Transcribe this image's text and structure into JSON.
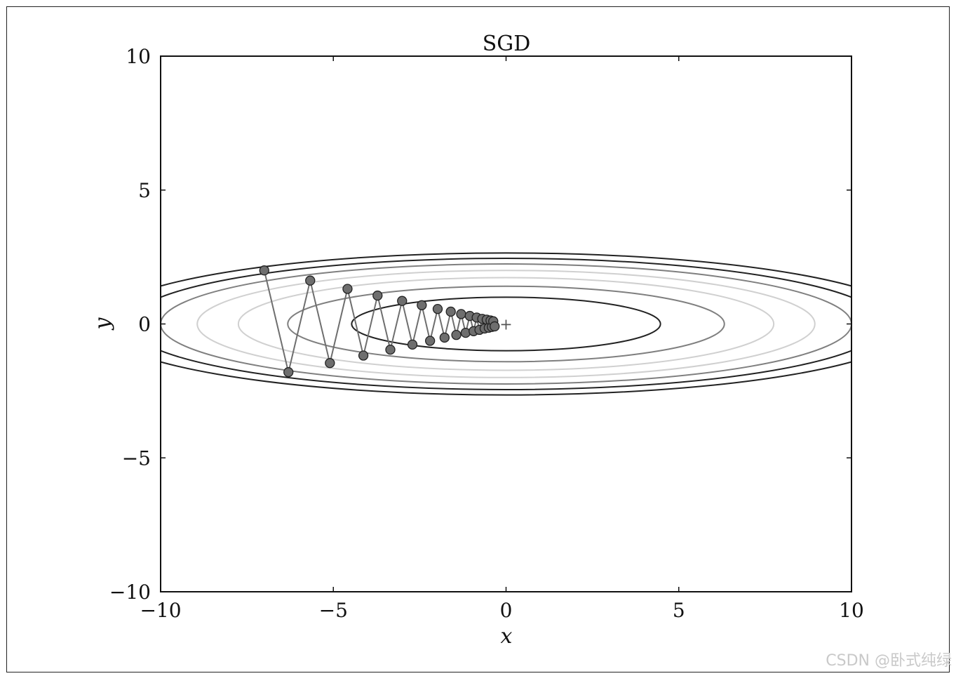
{
  "chart_data": {
    "type": "line",
    "title": "SGD",
    "xlabel": "x",
    "ylabel": "y",
    "xlim": [
      -10,
      10
    ],
    "ylim": [
      -10,
      10
    ],
    "xticks": [
      -10,
      -5,
      0,
      5,
      10
    ],
    "yticks": [
      -10,
      -5,
      0,
      5,
      10
    ],
    "xtick_labels": [
      "−10",
      "−5",
      "0",
      "5",
      "10"
    ],
    "ytick_labels": [
      "−10",
      "−5",
      "0",
      "5",
      "10"
    ],
    "grid": false,
    "function": "x^2/20 + y^2",
    "contour_levels": [
      {
        "a": 4.47,
        "b": 1.0,
        "color": "#222222"
      },
      {
        "a": 6.32,
        "b": 1.41,
        "color": "#7f7f7f"
      },
      {
        "a": 7.75,
        "b": 1.73,
        "color": "#d0d0d0"
      },
      {
        "a": 8.94,
        "b": 2.0,
        "color": "#d0d0d0"
      },
      {
        "a": 10.0,
        "b": 2.24,
        "color": "#7f7f7f"
      },
      {
        "a": 10.95,
        "b": 2.45,
        "color": "#222222"
      },
      {
        "a": 11.83,
        "b": 2.65,
        "color": "#222222"
      }
    ],
    "minimum_marker": {
      "x": 0,
      "y": 0,
      "symbol": "+"
    },
    "series": [
      {
        "color": "#6e6e6e",
        "marker": "circle",
        "x": [
          -7.0,
          -6.3,
          -5.67,
          -5.1,
          -4.59,
          -4.13,
          -3.72,
          -3.35,
          -3.01,
          -2.71,
          -2.44,
          -2.2,
          -1.98,
          -1.78,
          -1.6,
          -1.44,
          -1.3,
          -1.17,
          -1.05,
          -0.94,
          -0.85,
          -0.77,
          -0.69,
          -0.62,
          -0.56,
          -0.5,
          -0.45,
          -0.41,
          -0.37,
          -0.33
        ],
        "y": [
          2.0,
          -1.8,
          1.62,
          -1.46,
          1.31,
          -1.18,
          1.06,
          -0.96,
          0.86,
          -0.77,
          0.7,
          -0.63,
          0.56,
          -0.51,
          0.46,
          -0.41,
          0.37,
          -0.33,
          0.3,
          -0.27,
          0.24,
          -0.22,
          0.19,
          -0.17,
          0.16,
          -0.14,
          0.13,
          -0.11,
          0.1,
          -0.09
        ]
      }
    ]
  },
  "watermark": "CSDN @卧式纯绿"
}
